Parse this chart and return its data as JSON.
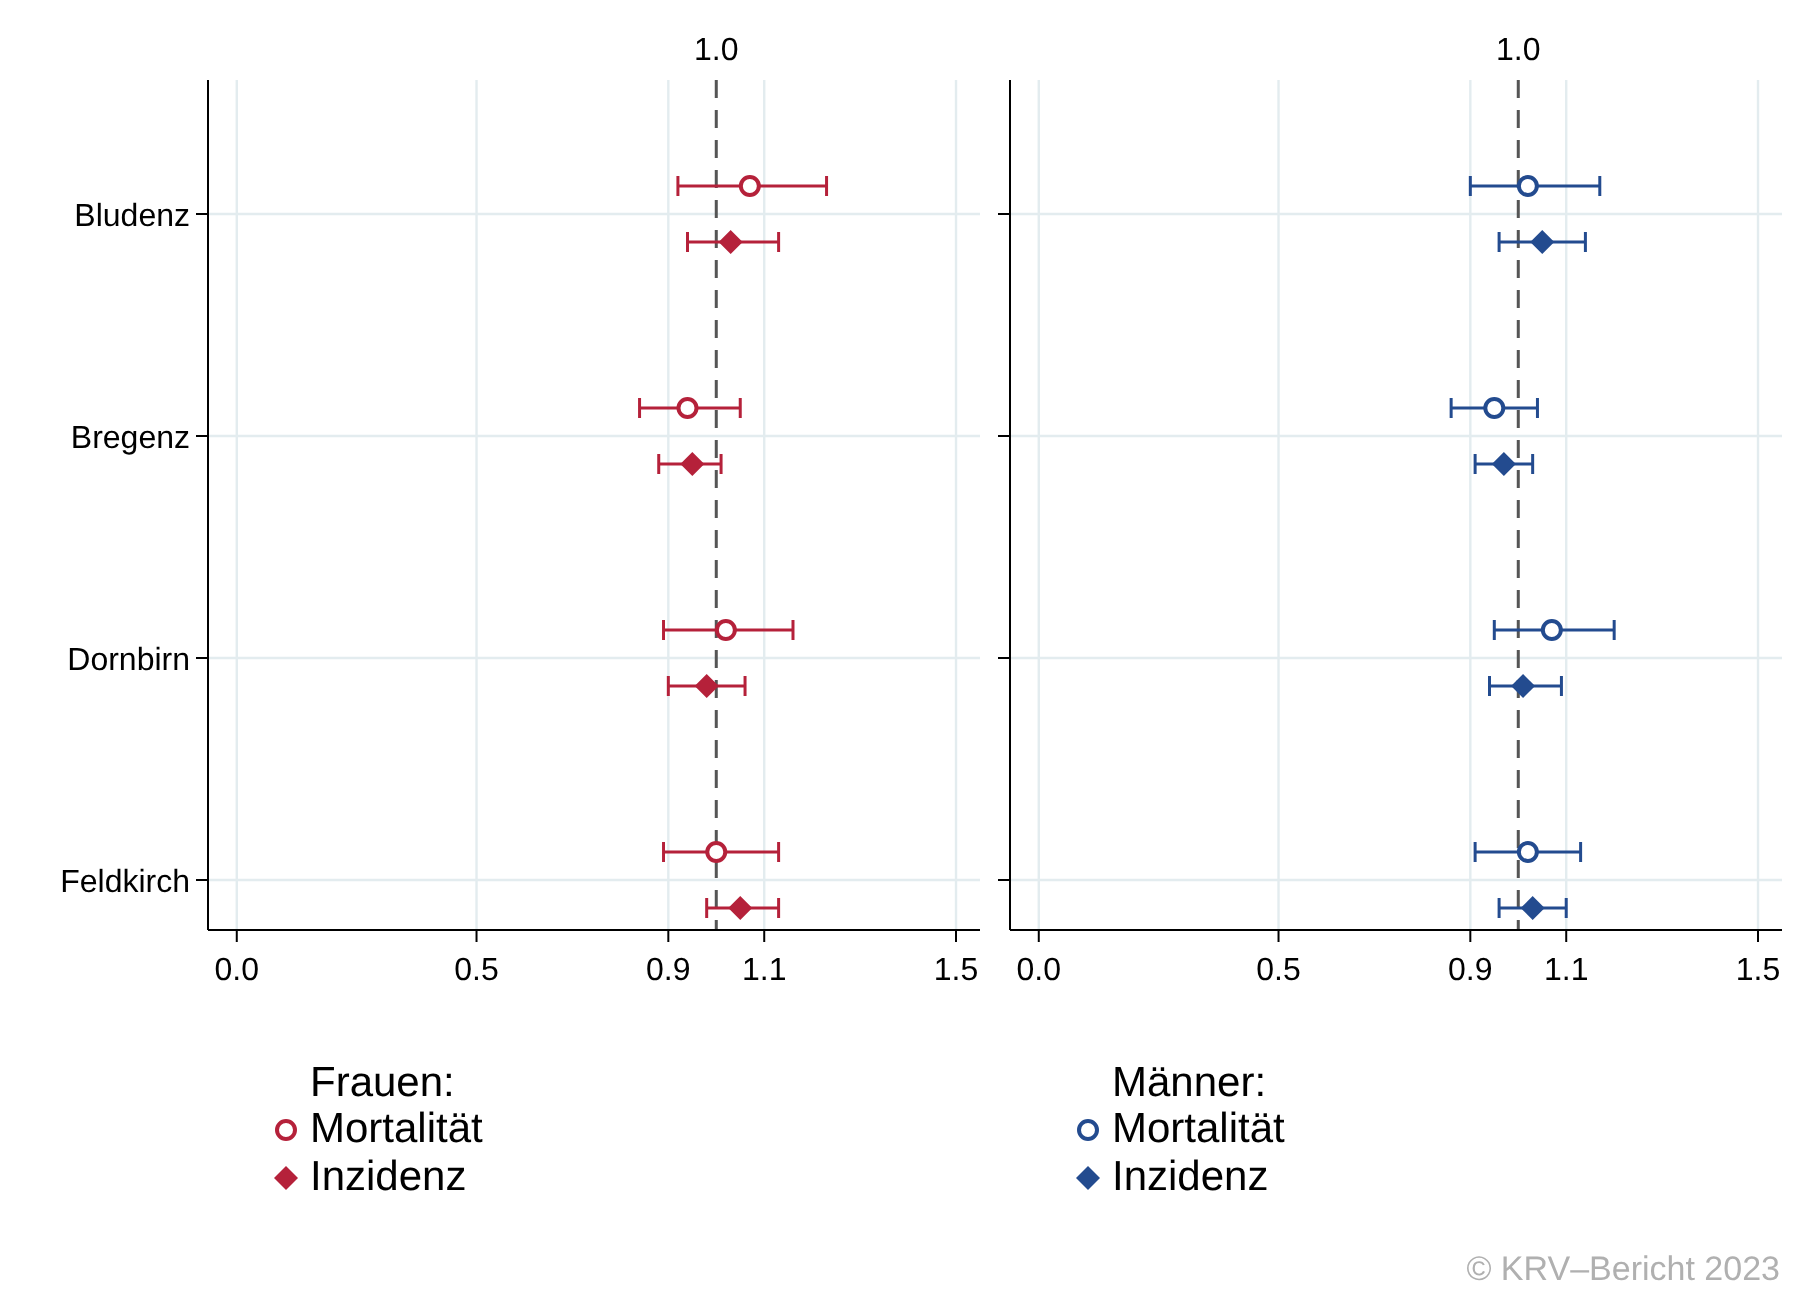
{
  "chart_data": [
    {
      "type": "scatter",
      "orientation": "horizontal",
      "categories": [
        "Bludenz",
        "Bregenz",
        "Dornbirn",
        "Feldkirch"
      ],
      "legend_title": "Frauen:",
      "legend": "bottom",
      "grid": true,
      "xlim": [
        -0.06,
        1.55
      ],
      "xticks": [
        {
          "value": 0,
          "label": "0.0"
        },
        0.5,
        0.9,
        1.1,
        1.5
      ],
      "ref_lines": [
        {
          "axis": "x",
          "value": 1,
          "label": "1.0",
          "line_style": "dashed",
          "color": "#555555"
        }
      ],
      "series": [
        {
          "name": "Mortalität",
          "color": "#b5213a",
          "marker": "circle",
          "values": [
            1.07,
            0.94,
            1.02,
            1.0
          ],
          "errors": [
            [
              0.92,
              1.23
            ],
            [
              0.84,
              1.05
            ],
            [
              0.89,
              1.16
            ],
            [
              0.89,
              1.13
            ]
          ]
        },
        {
          "name": "Inzidenz",
          "color": "#b5213a",
          "marker": "diamond",
          "values": [
            1.03,
            0.95,
            0.98,
            1.05
          ],
          "errors": [
            [
              0.94,
              1.13
            ],
            [
              0.88,
              1.01
            ],
            [
              0.9,
              1.06
            ],
            [
              0.98,
              1.13
            ]
          ]
        }
      ]
    },
    {
      "type": "scatter",
      "orientation": "horizontal",
      "categories": [
        null,
        null,
        null,
        null
      ],
      "tick_labels": "x",
      "legend_title": "Männer:",
      "legend": "bottom",
      "grid": true,
      "xlim": [
        -0.06,
        1.55
      ],
      "xticks": [
        {
          "value": 0,
          "label": "0.0"
        },
        0.5,
        0.9,
        1.1,
        1.5
      ],
      "ref_lines": [
        {
          "axis": "x",
          "value": 1,
          "label": "1.0",
          "line_style": "dashed",
          "color": "#555555"
        }
      ],
      "annotations": [
        "© KRV–Bericht 2023"
      ],
      "series": [
        {
          "name": "Mortalität",
          "color": "#234b8f",
          "marker": "circle",
          "values": [
            1.02,
            0.95,
            1.07,
            1.02
          ],
          "errors": [
            [
              0.9,
              1.17
            ],
            [
              0.86,
              1.04
            ],
            [
              0.95,
              1.2
            ],
            [
              0.91,
              1.13
            ]
          ]
        },
        {
          "name": "Inzidenz",
          "color": "#234b8f",
          "marker": "diamond",
          "values": [
            1.05,
            0.97,
            1.01,
            1.03
          ],
          "errors": [
            [
              0.96,
              1.14
            ],
            [
              0.91,
              1.03
            ],
            [
              0.94,
              1.09
            ],
            [
              0.96,
              1.1
            ]
          ]
        }
      ]
    }
  ]
}
